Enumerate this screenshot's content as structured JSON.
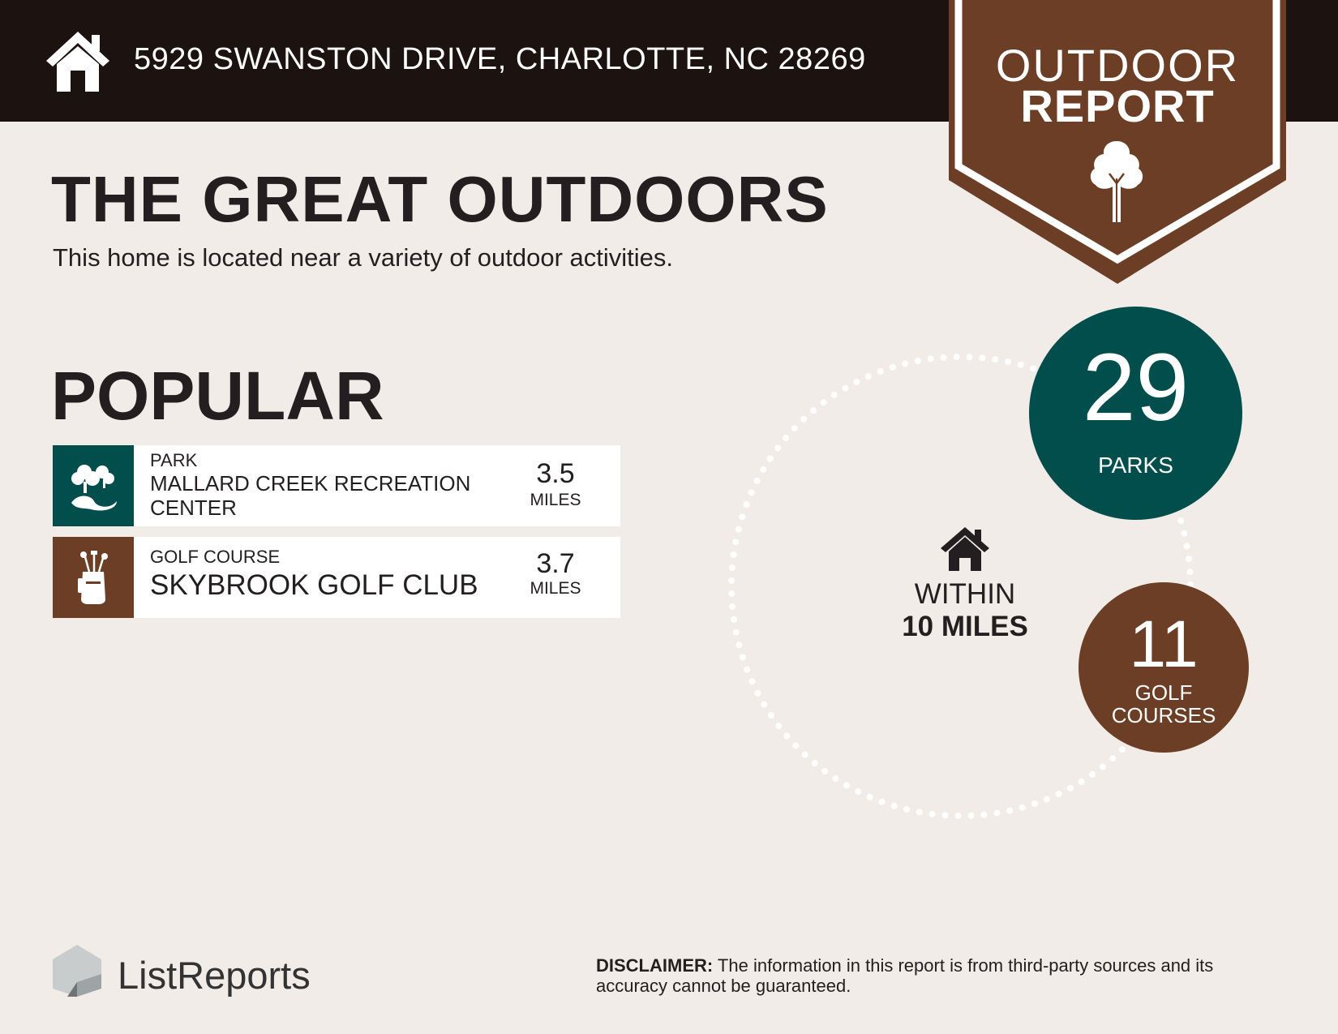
{
  "header": {
    "address": "5929 SWANSTON DRIVE, CHARLOTTE, NC 28269",
    "badge_line1": "OUTDOOR",
    "badge_line2": "REPORT",
    "icon": "home-icon"
  },
  "intro": {
    "title": "THE GREAT OUTDOORS",
    "subtitle": "This home is located near a variety of outdoor activities."
  },
  "popular": {
    "heading": "POPULAR",
    "items": [
      {
        "category": "PARK",
        "name": "MALLARD CREEK RECREATION CENTER",
        "distance": "3.5",
        "unit": "MILES",
        "icon": "park-icon",
        "color": "#014e4c"
      },
      {
        "category": "GOLF COURSE",
        "name": "SKYBROOK GOLF CLUB",
        "distance": "3.7",
        "unit": "MILES",
        "icon": "golf-bag-icon",
        "color": "#6b3e25"
      }
    ]
  },
  "radius": {
    "within": "WITHIN",
    "distance": "10 MILES",
    "stats": [
      {
        "count": "29",
        "label": "PARKS",
        "color": "#014e4c"
      },
      {
        "count": "11",
        "label": "GOLF COURSES",
        "color": "#6b3e25"
      }
    ]
  },
  "footer": {
    "brand": "ListReports",
    "disclaimer_label": "DISCLAIMER:",
    "disclaimer_text": " The information in this report is from third-party sources and its accuracy cannot be guaranteed."
  },
  "colors": {
    "dark": "#1c1210",
    "brown": "#6b3e25",
    "teal": "#014e4c",
    "background": "#f1ece8"
  }
}
